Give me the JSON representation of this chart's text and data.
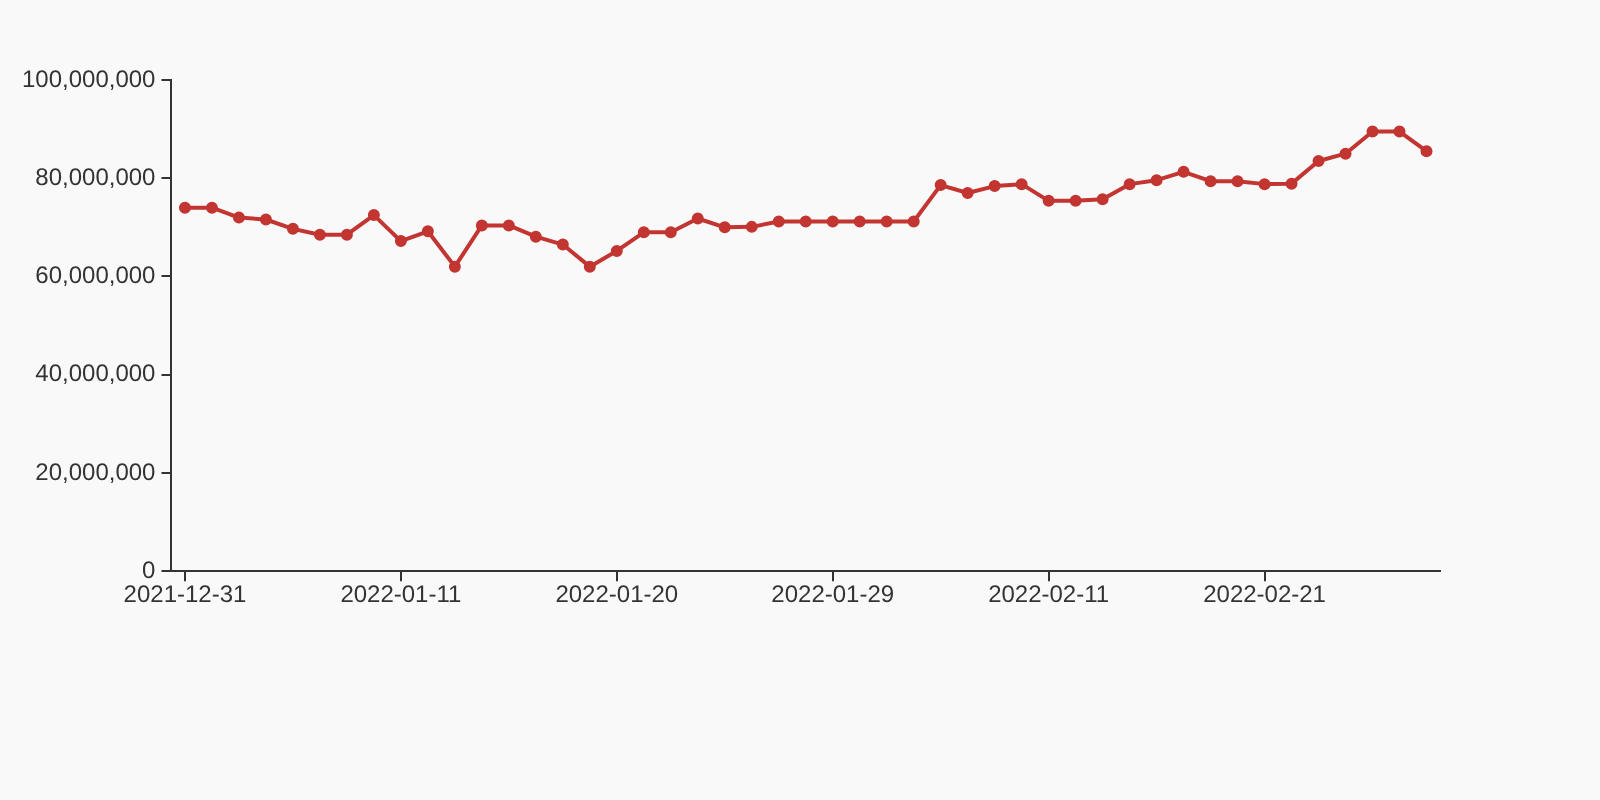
{
  "chart_data": {
    "type": "line",
    "categories": [
      "2021-12-31",
      null,
      null,
      null,
      null,
      null,
      null,
      null,
      "2022-01-11",
      null,
      null,
      null,
      null,
      null,
      null,
      null,
      "2022-01-20",
      null,
      null,
      null,
      null,
      null,
      null,
      null,
      "2022-01-29",
      null,
      null,
      null,
      null,
      null,
      null,
      null,
      "2022-02-11",
      null,
      null,
      null,
      null,
      null,
      null,
      null,
      "2022-02-21",
      null,
      null,
      null,
      null,
      null,
      null
    ],
    "series": [
      {
        "color": "#c23531",
        "values": [
          74000000,
          74000000,
          72000000,
          71600000,
          69700000,
          68500000,
          68500000,
          72500000,
          67200000,
          69200000,
          62000000,
          70400000,
          70400000,
          68100000,
          66500000,
          62000000,
          65200000,
          69000000,
          69000000,
          71800000,
          70000000,
          70100000,
          71200000,
          71200000,
          71200000,
          71200000,
          71200000,
          71200000,
          78600000,
          77000000,
          78400000,
          78800000,
          75400000,
          75400000,
          75700000,
          78800000,
          79600000,
          81300000,
          79400000,
          79400000,
          78800000,
          78900000,
          83500000,
          85000000,
          89500000,
          89500000,
          85500000
        ]
      }
    ],
    "ylim": [
      0,
      100000000
    ],
    "yticks": [
      0,
      {
        "value": 20000000,
        "label": "20,000,000"
      },
      {
        "value": 40000000,
        "label": "40,000,000"
      },
      {
        "value": 60000000,
        "label": "60,000,000"
      },
      {
        "value": 80000000,
        "label": "80,000,000"
      },
      {
        "value": 100000000,
        "label": "100,000,000"
      }
    ],
    "grid": false,
    "legend": false,
    "marker": "circle",
    "line_style": "solid"
  }
}
